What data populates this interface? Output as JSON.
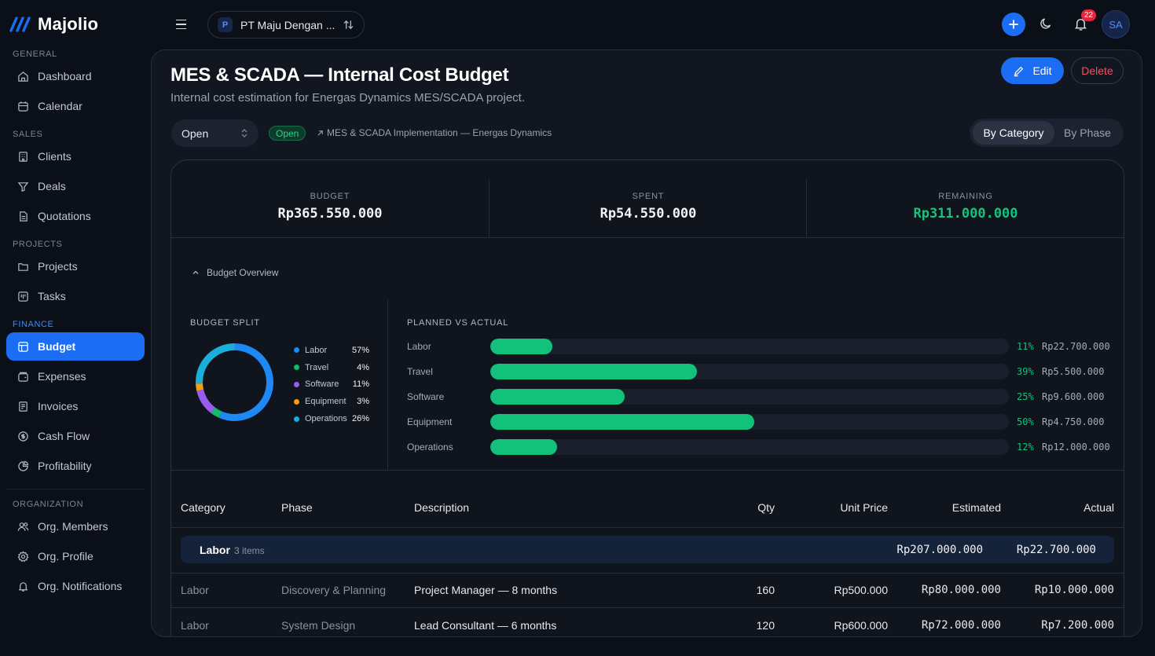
{
  "brand": {
    "name": "Majolio",
    "color": "#1b6ef3"
  },
  "sidebar": {
    "sections": [
      {
        "label": "GENERAL"
      },
      {
        "label": "SALES"
      },
      {
        "label": "PROJECTS"
      },
      {
        "label": "FINANCE"
      },
      {
        "label": "ORGANIZATION"
      }
    ],
    "items": [
      {
        "label": "Dashboard",
        "icon": "home-icon"
      },
      {
        "label": "Calendar",
        "icon": "calendar-icon"
      },
      {
        "label": "Clients",
        "icon": "building-icon"
      },
      {
        "label": "Deals",
        "icon": "filter-icon"
      },
      {
        "label": "Quotations",
        "icon": "document-icon"
      },
      {
        "label": "Projects",
        "icon": "folder-icon"
      },
      {
        "label": "Tasks",
        "icon": "kanban-icon"
      },
      {
        "label": "Budget",
        "icon": "budget-icon",
        "active": true
      },
      {
        "label": "Expenses",
        "icon": "wallet-icon"
      },
      {
        "label": "Invoices",
        "icon": "invoice-icon"
      },
      {
        "label": "Cash Flow",
        "icon": "cashflow-icon"
      },
      {
        "label": "Profitability",
        "icon": "pie-icon"
      },
      {
        "label": "Org. Members",
        "icon": "users-icon"
      },
      {
        "label": "Org. Profile",
        "icon": "gear-icon"
      },
      {
        "label": "Org. Notifications",
        "icon": "bell-icon"
      }
    ]
  },
  "topbar": {
    "org_initial": "P",
    "org_name": "PT Maju Dengan ...",
    "notification_count": "22",
    "user_initials": "SA"
  },
  "page": {
    "title": "MES & SCADA — Internal Cost Budget",
    "subtitle": "Internal cost estimation for Energas Dynamics MES/SCADA project.",
    "edit_label": "Edit",
    "delete_label": "Delete",
    "status_value": "Open",
    "status_badge": "Open",
    "project_link": "MES & SCADA Implementation — Energas Dynamics",
    "view_options": [
      "By Category",
      "By Phase"
    ],
    "view_selected": "By Category"
  },
  "stats": {
    "budget_label": "BUDGET",
    "budget_value": "Rp365.550.000",
    "spent_label": "SPENT",
    "spent_value": "Rp54.550.000",
    "remaining_label": "REMAINING",
    "remaining_value": "Rp311.000.000",
    "remaining_color": "#17c27b"
  },
  "overview": {
    "toggle_label": "Budget Overview",
    "split_title": "BUDGET SPLIT",
    "split": [
      {
        "name": "Labor",
        "pct_label": "57%",
        "value": 57,
        "color": "#1e88f5"
      },
      {
        "name": "Travel",
        "pct_label": "4%",
        "value": 4,
        "color": "#13b96e"
      },
      {
        "name": "Software",
        "pct_label": "11%",
        "value": 11,
        "color": "#9a5cf0"
      },
      {
        "name": "Equipment",
        "pct_label": "3%",
        "value": 3,
        "color": "#f5a012"
      },
      {
        "name": "Operations",
        "pct_label": "26%",
        "value": 26,
        "color": "#1aaed8"
      }
    ],
    "pva_title": "PLANNED VS ACTUAL",
    "pva": [
      {
        "name": "Labor",
        "pct_label": "11%",
        "value": 11,
        "amount": "Rp22.700.000"
      },
      {
        "name": "Travel",
        "pct_label": "39%",
        "value": 39,
        "amount": "Rp5.500.000"
      },
      {
        "name": "Software",
        "pct_label": "25%",
        "value": 25,
        "amount": "Rp9.600.000"
      },
      {
        "name": "Equipment",
        "pct_label": "50%",
        "value": 50,
        "amount": "Rp4.750.000"
      },
      {
        "name": "Operations",
        "pct_label": "12%",
        "value": 12,
        "amount": "Rp12.000.000"
      }
    ]
  },
  "table": {
    "headers": {
      "category": "Category",
      "phase": "Phase",
      "description": "Description",
      "qty": "Qty",
      "unit_price": "Unit Price",
      "estimated": "Estimated",
      "actual": "Actual"
    },
    "group": {
      "name": "Labor",
      "count": "3 items",
      "estimated": "Rp207.000.000",
      "actual": "Rp22.700.000"
    },
    "rows": [
      {
        "category": "Labor",
        "phase": "Discovery & Planning",
        "description": "Project Manager — 8 months",
        "qty": "160",
        "unit_price": "Rp500.000",
        "estimated": "Rp80.000.000",
        "actual": "Rp10.000.000"
      },
      {
        "category": "Labor",
        "phase": "System Design",
        "description": "Lead Consultant — 6 months",
        "qty": "120",
        "unit_price": "Rp600.000",
        "estimated": "Rp72.000.000",
        "actual": "Rp7.200.000"
      }
    ]
  }
}
